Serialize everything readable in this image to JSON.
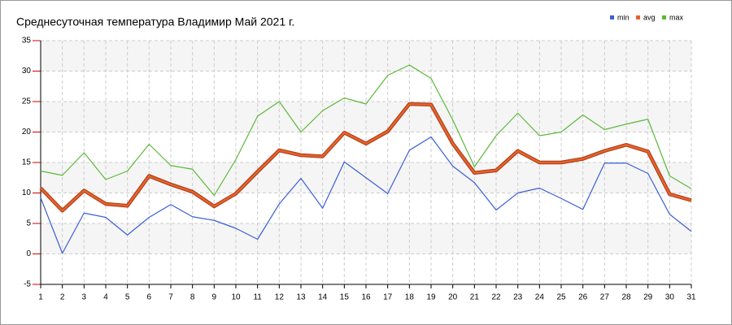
{
  "chart_data": {
    "type": "line",
    "title": "Среднесуточная температура Владимир  Май 2021 г.",
    "x": [
      1,
      2,
      3,
      4,
      5,
      6,
      7,
      8,
      9,
      10,
      11,
      12,
      13,
      14,
      15,
      16,
      17,
      18,
      19,
      20,
      21,
      22,
      23,
      24,
      25,
      26,
      27,
      28,
      29,
      30,
      31
    ],
    "series": [
      {
        "name": "min",
        "color": "#3a5fd6",
        "values": [
          9.2,
          0.1,
          6.7,
          6.0,
          3.1,
          6.0,
          8.1,
          6.1,
          5.5,
          4.2,
          2.4,
          8.2,
          12.4,
          7.5,
          15.1,
          12.5,
          9.9,
          17.0,
          19.2,
          14.4,
          11.7,
          7.2,
          10.0,
          10.8,
          9.1,
          7.3,
          14.9,
          14.9,
          13.2,
          6.5,
          3.7
        ]
      },
      {
        "name": "avg",
        "color": "#e8612c",
        "values": [
          10.8,
          7.1,
          10.4,
          8.2,
          7.9,
          12.8,
          11.4,
          10.2,
          7.8,
          9.9,
          13.5,
          17.0,
          16.2,
          16.0,
          19.9,
          18.1,
          20.1,
          24.6,
          24.5,
          18.1,
          13.3,
          13.7,
          16.9,
          15.0,
          15.0,
          15.6,
          16.9,
          17.9,
          16.8,
          9.8,
          8.8
        ]
      },
      {
        "name": "max",
        "color": "#5cb83a",
        "values": [
          13.6,
          12.9,
          16.6,
          12.2,
          13.6,
          18.0,
          14.5,
          13.9,
          9.6,
          15.5,
          22.6,
          25.0,
          20.0,
          23.5,
          25.6,
          24.6,
          29.3,
          31.0,
          28.8,
          22.0,
          14.3,
          19.4,
          23.1,
          19.4,
          20.0,
          22.8,
          20.4,
          21.3,
          22.1,
          12.8,
          10.7
        ]
      }
    ],
    "xlim": [
      1,
      31
    ],
    "xticks": [
      1,
      2,
      3,
      4,
      5,
      6,
      7,
      8,
      9,
      10,
      11,
      12,
      13,
      14,
      15,
      16,
      17,
      18,
      19,
      20,
      21,
      22,
      23,
      24,
      25,
      26,
      27,
      28,
      29,
      30,
      31
    ],
    "ylim": [
      -5,
      35
    ],
    "yticks": [
      -5,
      0,
      5,
      10,
      15,
      20,
      25,
      30,
      35
    ],
    "grid": true,
    "legend": "top-right"
  }
}
